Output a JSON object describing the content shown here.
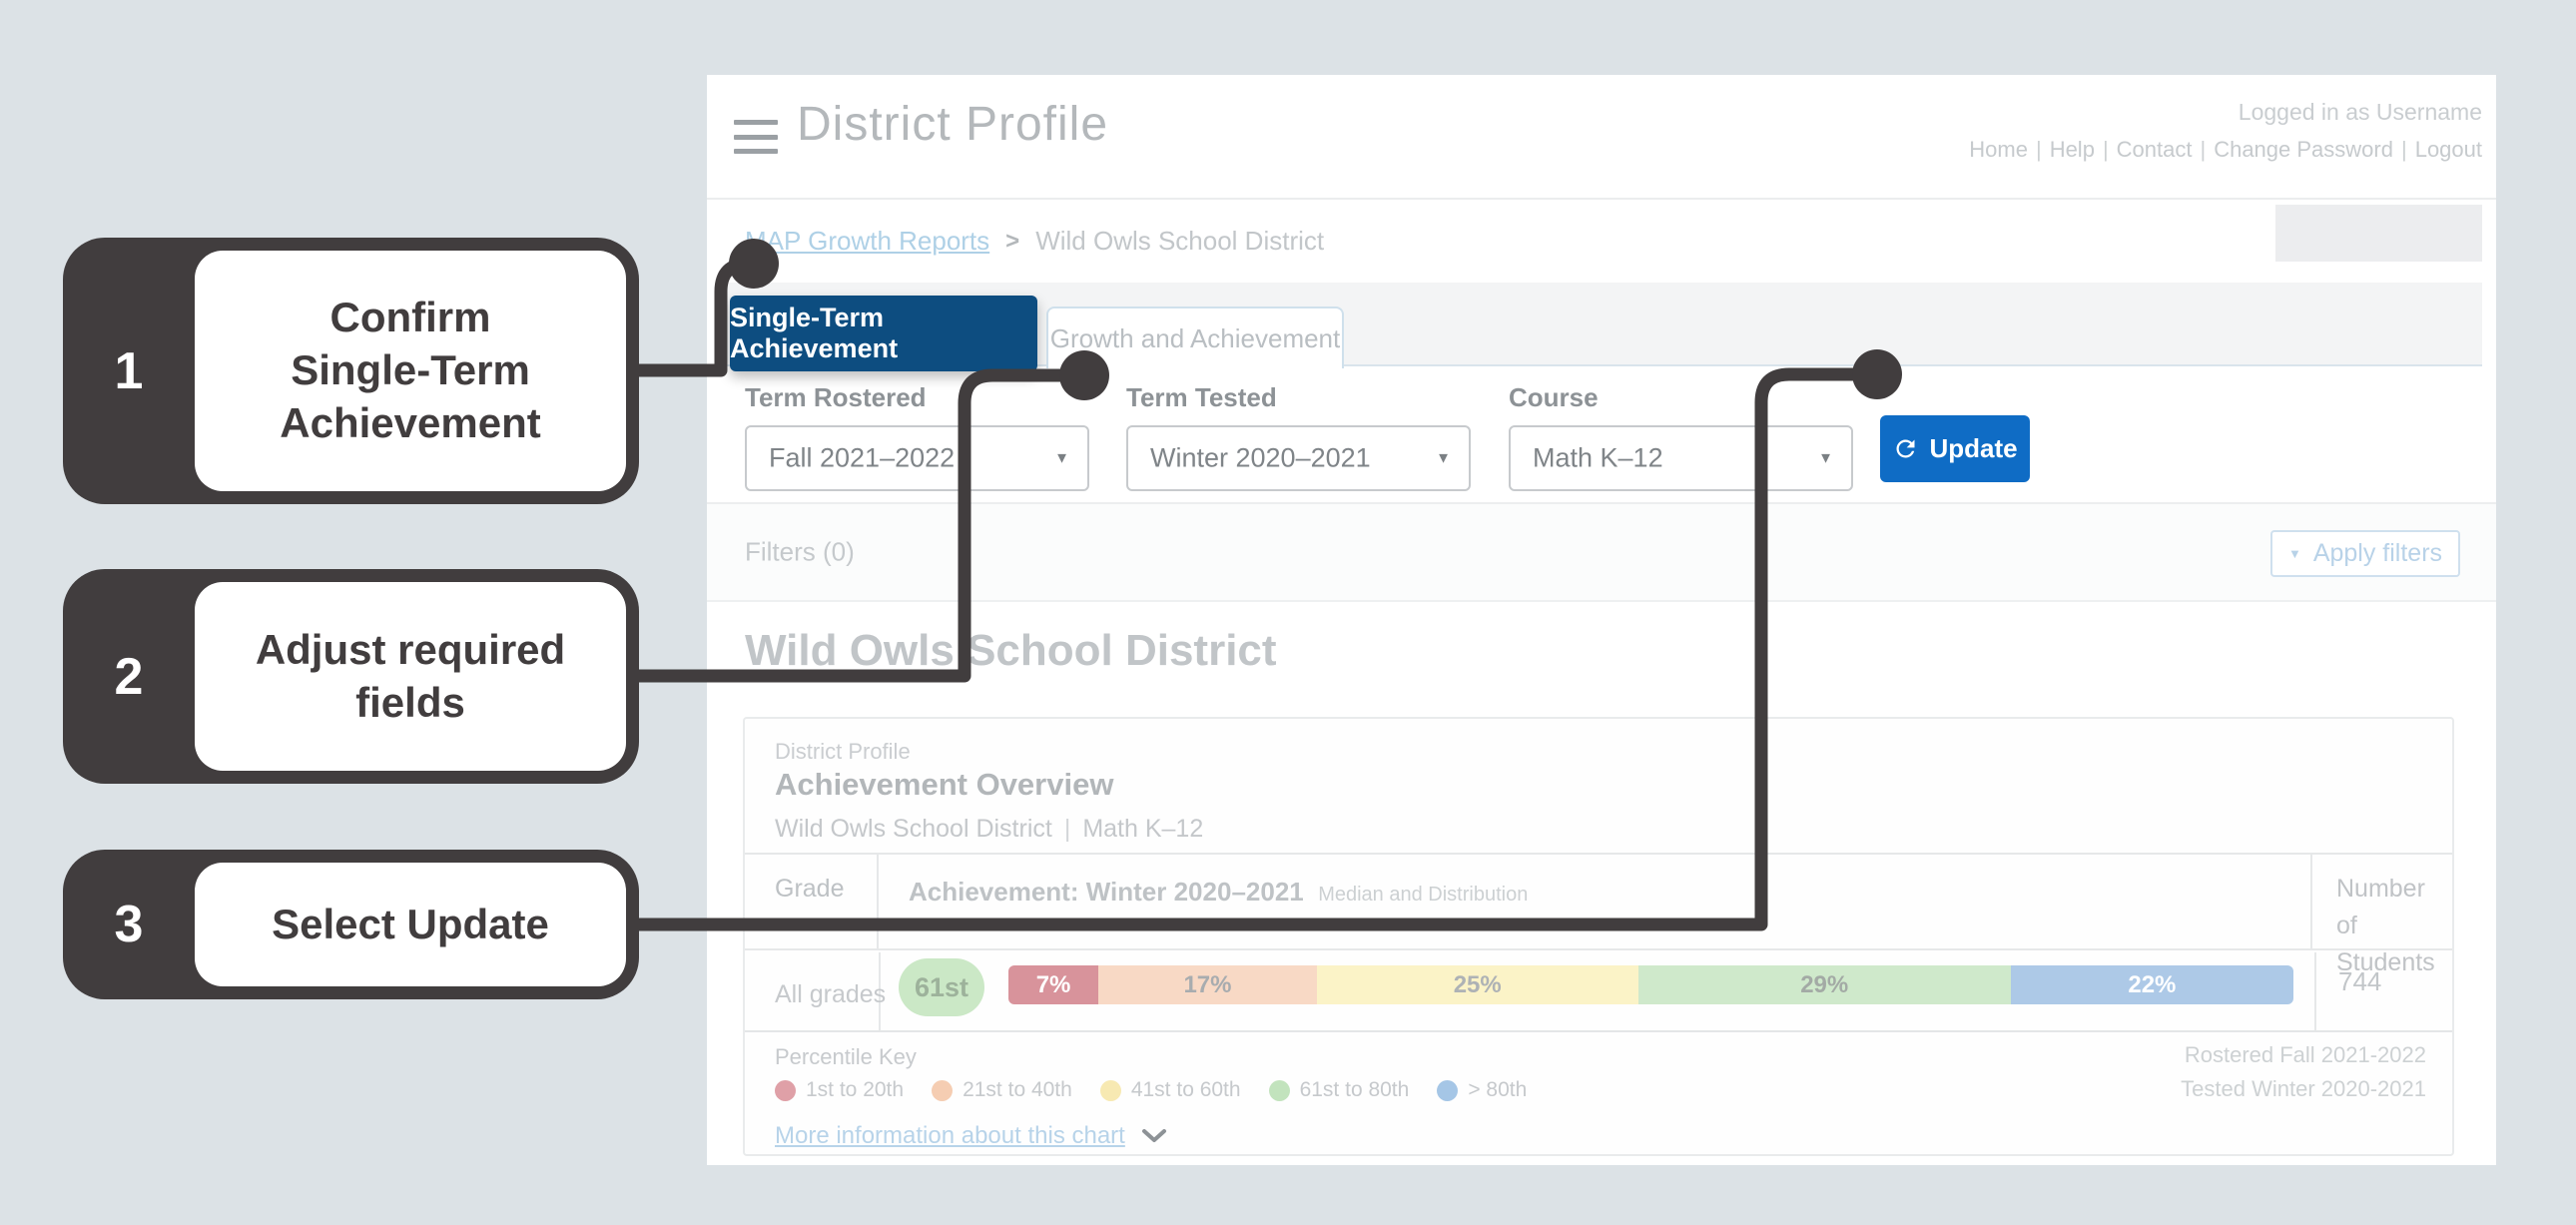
{
  "colors": {
    "page_bg": "#dce2e6",
    "dark": "#413d3e",
    "tab_blue": "#0d4d80",
    "btn_blue": "#0f6cc5",
    "band_bg": "#f3f4f5"
  },
  "icons": {
    "caret_down": "▼",
    "breadcrumb_sep": ">"
  },
  "header": {
    "title": "District Profile",
    "logged_in": "Logged in as Username",
    "nav_separator": "|",
    "nav_links": [
      "Home",
      "Help",
      "Contact",
      "Change Password",
      "Logout"
    ]
  },
  "breadcrumb": {
    "link": "MAP Growth Reports",
    "current": "Wild Owls School District"
  },
  "tabs": [
    {
      "label": "Single-Term Achievement",
      "active": true
    },
    {
      "label": "Growth and Achievement",
      "active": false
    }
  ],
  "fields": [
    {
      "label": "Term Rostered",
      "value": "Fall 2021–2022"
    },
    {
      "label": "Term Tested",
      "value": "Winter 2020–2021"
    },
    {
      "label": "Course",
      "value": "Math K–12"
    }
  ],
  "update_button_label": "Update",
  "filters": {
    "label": "Filters (0)",
    "apply_button_label": "Apply filters"
  },
  "page_heading": "Wild Owls School District",
  "card": {
    "eyebrow": "District Profile",
    "title": "Achievement Overview",
    "subtitle_district": "Wild Owls School District",
    "subtitle_sep": "|",
    "subtitle_course": "Math K–12",
    "table": {
      "col_grade": "Grade",
      "col_achievement": "Achievement: Winter 2020–2021",
      "col_achievement_sub": "Median and Distribution",
      "col_students_line1": "Number of",
      "col_students_line2": "Students",
      "row_label": "All grades",
      "median_badge": "61st",
      "students_value": "744"
    },
    "legend": {
      "title": "Percentile Key",
      "items": [
        {
          "label": "1st to 20th",
          "color": "#dfa0a7"
        },
        {
          "label": "21st to 40th",
          "color": "#f5cdb2"
        },
        {
          "label": "41st to 60th",
          "color": "#f7e9b2"
        },
        {
          "label": "61st to 80th",
          "color": "#c2e3bd"
        },
        {
          "label": "> 80th",
          "color": "#a5c6e6"
        }
      ]
    },
    "rostered_note": "Rostered Fall 2021-2022",
    "tested_note": "Tested Winter 2020-2021",
    "more_info_link": "More information about this chart"
  },
  "callouts": [
    {
      "number": "1",
      "lines": [
        "Confirm",
        "Single-Term",
        "Achievement"
      ]
    },
    {
      "number": "2",
      "lines": [
        "Adjust required",
        "fields"
      ]
    },
    {
      "number": "3",
      "lines": [
        "Select Update"
      ]
    }
  ],
  "chart_data": {
    "type": "bar",
    "variant": "stacked-horizontal-distribution",
    "title": "Achievement: Winter 2020–2021",
    "subtitle": "Median and Distribution",
    "categories": [
      "All grades"
    ],
    "unit": "%",
    "series": [
      {
        "name": "1st to 20th",
        "values": [
          7
        ],
        "color": "#d8939b",
        "label_color": "#ffffff"
      },
      {
        "name": "21st to 40th",
        "values": [
          17
        ],
        "color": "#f8d9c5",
        "label_color": "#a8acaf"
      },
      {
        "name": "41st to 60th",
        "values": [
          25
        ],
        "color": "#fbf3c7",
        "label_color": "#aeb2b5"
      },
      {
        "name": "61st to 80th",
        "values": [
          29
        ],
        "color": "#cfe9cb",
        "label_color": "#a3aaa5"
      },
      {
        "name": "> 80th",
        "values": [
          22
        ],
        "color": "#adc9e7",
        "label_color": "#ffffff"
      }
    ],
    "median_percentile": "61st",
    "number_of_students": [
      744
    ]
  }
}
